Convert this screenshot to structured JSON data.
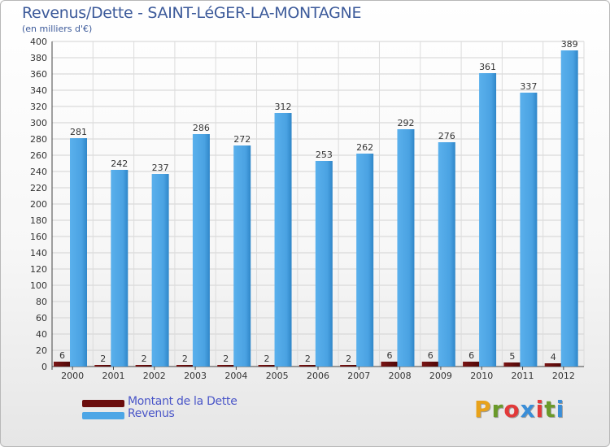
{
  "title": "Revenus/Dette - SAINT-LéGER-LA-MONTAGNE",
  "subtitle": "(en milliers d'€)",
  "logo_text": "Proxiti",
  "chart_data": {
    "type": "bar",
    "categories": [
      "2000",
      "2001",
      "2002",
      "2003",
      "2004",
      "2005",
      "2006",
      "2007",
      "2008",
      "2009",
      "2010",
      "2011",
      "2012"
    ],
    "series": [
      {
        "name": "Montant de la Dette",
        "color": "#6b0d0d",
        "values": [
          6,
          2,
          2,
          2,
          2,
          2,
          2,
          2,
          6,
          6,
          6,
          5,
          4
        ]
      },
      {
        "name": "Revenus",
        "color": "#4da6e6",
        "values": [
          281,
          242,
          237,
          286,
          272,
          312,
          253,
          262,
          292,
          276,
          361,
          337,
          389
        ]
      }
    ],
    "ylim": [
      0,
      400
    ],
    "yticks": [
      0,
      20,
      40,
      60,
      80,
      100,
      120,
      140,
      160,
      180,
      200,
      220,
      240,
      260,
      280,
      300,
      320,
      340,
      360,
      380,
      400
    ],
    "grid": true,
    "legend_position": "bottom-left",
    "xlabel": "",
    "ylabel": ""
  }
}
